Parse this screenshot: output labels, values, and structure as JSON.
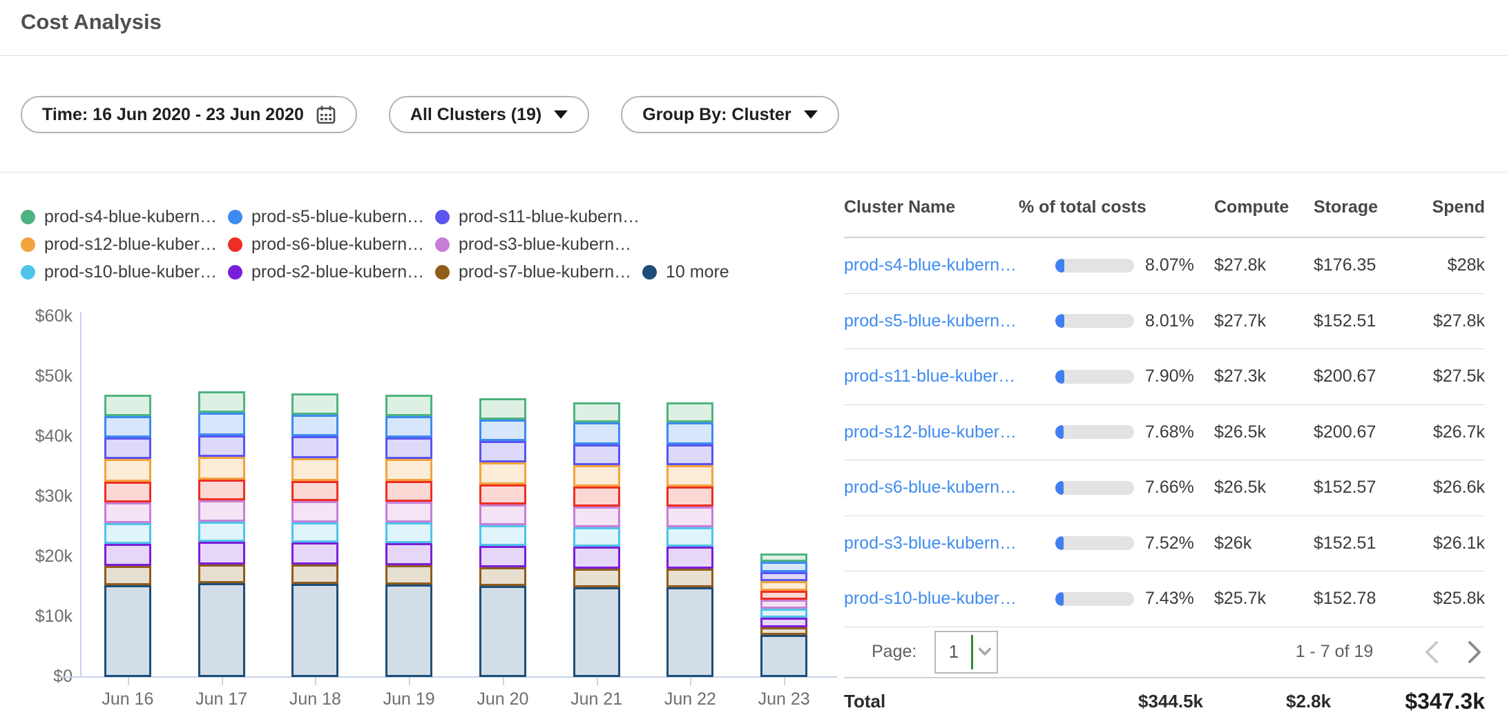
{
  "header": {
    "title": "Cost Analysis"
  },
  "filters": {
    "time": {
      "label": "Time: 16 Jun 2020 - 23 Jun 2020",
      "icon": "calendar-icon"
    },
    "clusters": {
      "label": "All Clusters (19)"
    },
    "group_by": {
      "label": "Group By: Cluster"
    }
  },
  "chart_data": {
    "type": "bar",
    "stacked": true,
    "stack_order": "first-series-on-top",
    "categories": [
      "Jun 16",
      "Jun 17",
      "Jun 18",
      "Jun 19",
      "Jun 20",
      "Jun 21",
      "Jun 22",
      "Jun 23"
    ],
    "unit": "USD thousands per day",
    "ylim": [
      0,
      60
    ],
    "yticks": [
      "$0",
      "$10k",
      "$20k",
      "$30k",
      "$40k",
      "$50k",
      "$60k"
    ],
    "grid": false,
    "legend_position": "top-left",
    "legend_rows": [
      [
        0,
        1,
        2
      ],
      [
        3,
        4,
        5
      ],
      [
        6,
        7,
        8,
        9
      ]
    ],
    "series": [
      {
        "name": "prod-s4-blue-kubern…",
        "color": "#4db380",
        "fill": "#def0e4",
        "values": [
          3.5,
          3.6,
          3.6,
          3.5,
          3.5,
          3.4,
          3.4,
          1.4
        ]
      },
      {
        "name": "prod-s5-blue-kubern…",
        "color": "#3d8bf0",
        "fill": "#d8e6fb",
        "values": [
          3.6,
          3.7,
          3.6,
          3.6,
          3.6,
          3.6,
          3.6,
          1.7
        ]
      },
      {
        "name": "prod-s11-blue-kubern…",
        "color": "#5a54f2",
        "fill": "#dcd9fa",
        "values": [
          3.6,
          3.6,
          3.6,
          3.6,
          3.5,
          3.5,
          3.5,
          1.5
        ]
      },
      {
        "name": "prod-s12-blue-kuber…",
        "color": "#f2a33c",
        "fill": "#fcecd8",
        "values": [
          3.8,
          3.8,
          3.8,
          3.7,
          3.7,
          3.6,
          3.6,
          1.6
        ]
      },
      {
        "name": "prod-s6-blue-kubern…",
        "color": "#ee2e24",
        "fill": "#fbd8d4",
        "values": [
          3.4,
          3.5,
          3.4,
          3.4,
          3.4,
          3.3,
          3.3,
          1.5
        ]
      },
      {
        "name": "prod-s3-blue-kubern…",
        "color": "#c77fd6",
        "fill": "#f4e4f6",
        "values": [
          3.5,
          3.5,
          3.5,
          3.5,
          3.4,
          3.4,
          3.4,
          1.5
        ]
      },
      {
        "name": "prod-s10-blue-kuber…",
        "color": "#4ec4ea",
        "fill": "#e0f4fb",
        "values": [
          3.4,
          3.4,
          3.4,
          3.4,
          3.4,
          3.3,
          3.3,
          1.5
        ]
      },
      {
        "name": "prod-s2-blue-kubern…",
        "color": "#7a1fd9",
        "fill": "#e6d6f8",
        "values": [
          3.7,
          3.7,
          3.7,
          3.7,
          3.6,
          3.6,
          3.6,
          1.6
        ]
      },
      {
        "name": "prod-s7-blue-kubern…",
        "color": "#8f5c1c",
        "fill": "#e7dfd0",
        "values": [
          3.2,
          3.2,
          3.2,
          3.2,
          3.1,
          3.1,
          3.1,
          1.3
        ]
      },
      {
        "name": "10 more",
        "color": "#1d4e78",
        "fill": "#d3dde7",
        "values": [
          15.3,
          15.6,
          15.5,
          15.4,
          15.2,
          15.0,
          15.0,
          7.0
        ]
      }
    ]
  },
  "table": {
    "columns": [
      "Cluster Name",
      "% of total costs",
      "Compute",
      "Storage",
      "Spend"
    ],
    "rows": [
      {
        "name": "prod-s4-blue-kubern…",
        "pct": "8.07%",
        "pct_value": 8.07,
        "compute": "$27.8k",
        "storage": "$176.35",
        "spend": "$28k"
      },
      {
        "name": "prod-s5-blue-kubern…",
        "pct": "8.01%",
        "pct_value": 8.01,
        "compute": "$27.7k",
        "storage": "$152.51",
        "spend": "$27.8k"
      },
      {
        "name": "prod-s11-blue-kuber…",
        "pct": "7.90%",
        "pct_value": 7.9,
        "compute": "$27.3k",
        "storage": "$200.67",
        "spend": "$27.5k"
      },
      {
        "name": "prod-s12-blue-kuber…",
        "pct": "7.68%",
        "pct_value": 7.68,
        "compute": "$26.5k",
        "storage": "$200.67",
        "spend": "$26.7k"
      },
      {
        "name": "prod-s6-blue-kubern…",
        "pct": "7.66%",
        "pct_value": 7.66,
        "compute": "$26.5k",
        "storage": "$152.57",
        "spend": "$26.6k"
      },
      {
        "name": "prod-s3-blue-kubern…",
        "pct": "7.52%",
        "pct_value": 7.52,
        "compute": "$26k",
        "storage": "$152.51",
        "spend": "$26.1k"
      },
      {
        "name": "prod-s10-blue-kuber…",
        "pct": "7.43%",
        "pct_value": 7.43,
        "compute": "$25.7k",
        "storage": "$152.78",
        "spend": "$25.8k"
      }
    ],
    "pagination": {
      "label": "Page:",
      "page": "1",
      "range": "1 - 7 of 19"
    },
    "total": {
      "label": "Total",
      "compute": "$344.5k",
      "storage": "$2.8k",
      "spend": "$347.3k"
    }
  }
}
